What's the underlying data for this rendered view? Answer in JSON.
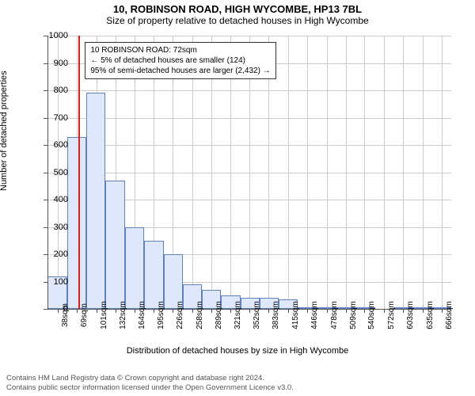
{
  "title_main": "10, ROBINSON ROAD, HIGH WYCOMBE, HP13 7BL",
  "title_sub": "Size of property relative to detached houses in High Wycombe",
  "ylabel": "Number of detached properties",
  "xlabel": "Distribution of detached houses by size in High Wycombe",
  "chart": {
    "type": "histogram",
    "xlim": [
      21,
      682
    ],
    "ylim": [
      0,
      1000
    ],
    "ytick_step": 100,
    "yticks": [
      0,
      100,
      200,
      300,
      400,
      500,
      600,
      700,
      800,
      900,
      1000
    ],
    "xticks": [
      38,
      69,
      101,
      132,
      164,
      195,
      226,
      258,
      289,
      321,
      352,
      383,
      415,
      446,
      478,
      509,
      540,
      572,
      603,
      635,
      666
    ],
    "xtick_unit": "sqm",
    "bar_fill": "#dfe8fa",
    "bar_stroke": "#6080c0",
    "grid_color": "#cccccc",
    "background": "#ffffff",
    "marker_x": 72,
    "marker_color": "#d02020",
    "bins": [
      {
        "start": 21,
        "end": 53,
        "count": 120
      },
      {
        "start": 53,
        "end": 85,
        "count": 630
      },
      {
        "start": 85,
        "end": 116,
        "count": 790
      },
      {
        "start": 116,
        "end": 148,
        "count": 470
      },
      {
        "start": 148,
        "end": 179,
        "count": 300
      },
      {
        "start": 179,
        "end": 211,
        "count": 250
      },
      {
        "start": 211,
        "end": 242,
        "count": 200
      },
      {
        "start": 242,
        "end": 274,
        "count": 90
      },
      {
        "start": 274,
        "end": 305,
        "count": 70
      },
      {
        "start": 305,
        "end": 337,
        "count": 50
      },
      {
        "start": 337,
        "end": 368,
        "count": 40
      },
      {
        "start": 368,
        "end": 400,
        "count": 40
      },
      {
        "start": 400,
        "end": 431,
        "count": 35
      },
      {
        "start": 431,
        "end": 463,
        "count": 5
      },
      {
        "start": 463,
        "end": 494,
        "count": 2
      },
      {
        "start": 494,
        "end": 525,
        "count": 5
      },
      {
        "start": 525,
        "end": 557,
        "count": 5
      },
      {
        "start": 557,
        "end": 588,
        "count": 0
      },
      {
        "start": 588,
        "end": 619,
        "count": 2
      },
      {
        "start": 619,
        "end": 651,
        "count": 5
      },
      {
        "start": 651,
        "end": 682,
        "count": 2
      }
    ]
  },
  "annotation": {
    "line1": "10 ROBINSON ROAD: 72sqm",
    "line2": "← 5% of detached houses are smaller (124)",
    "line3": "95% of semi-detached houses are larger (2,432) →"
  },
  "footer": {
    "line1": "Contains HM Land Registry data © Crown copyright and database right 2024.",
    "line2": "Contains public sector information licensed under the Open Government Licence v3.0."
  }
}
